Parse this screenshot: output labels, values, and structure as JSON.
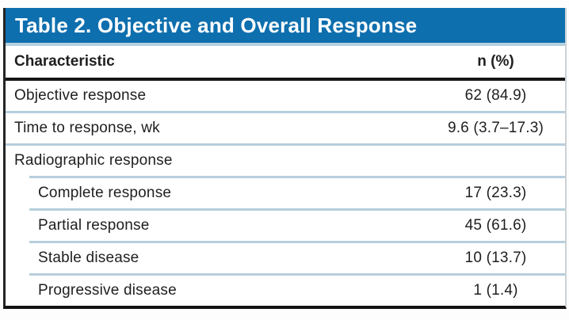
{
  "table": {
    "title": "Table 2. Objective and Overall Response",
    "columns": {
      "characteristic": "Characteristic",
      "n_pct": "n (%)"
    },
    "rows": [
      {
        "label": "Objective response",
        "value": "62 (84.9)",
        "indent": false
      },
      {
        "label": "Time to response, wk",
        "value": "9.6 (3.7–17.3)",
        "indent": false
      },
      {
        "label": "Radiographic response",
        "value": "",
        "indent": false
      },
      {
        "label": "Complete response",
        "value": "17 (23.3)",
        "indent": true
      },
      {
        "label": "Partial response",
        "value": "45 (61.6)",
        "indent": true
      },
      {
        "label": "Stable disease",
        "value": "10 (13.7)",
        "indent": true
      },
      {
        "label": "Progressive disease",
        "value": "1 (1.4)",
        "indent": true
      }
    ],
    "colors": {
      "header_bg": "#0e6fae",
      "header_underline": "#b3d0e0",
      "row_divider": "#b7cedd",
      "rule": "#161616",
      "text": "#1f1f1f",
      "title_text": "#ffffff"
    }
  }
}
